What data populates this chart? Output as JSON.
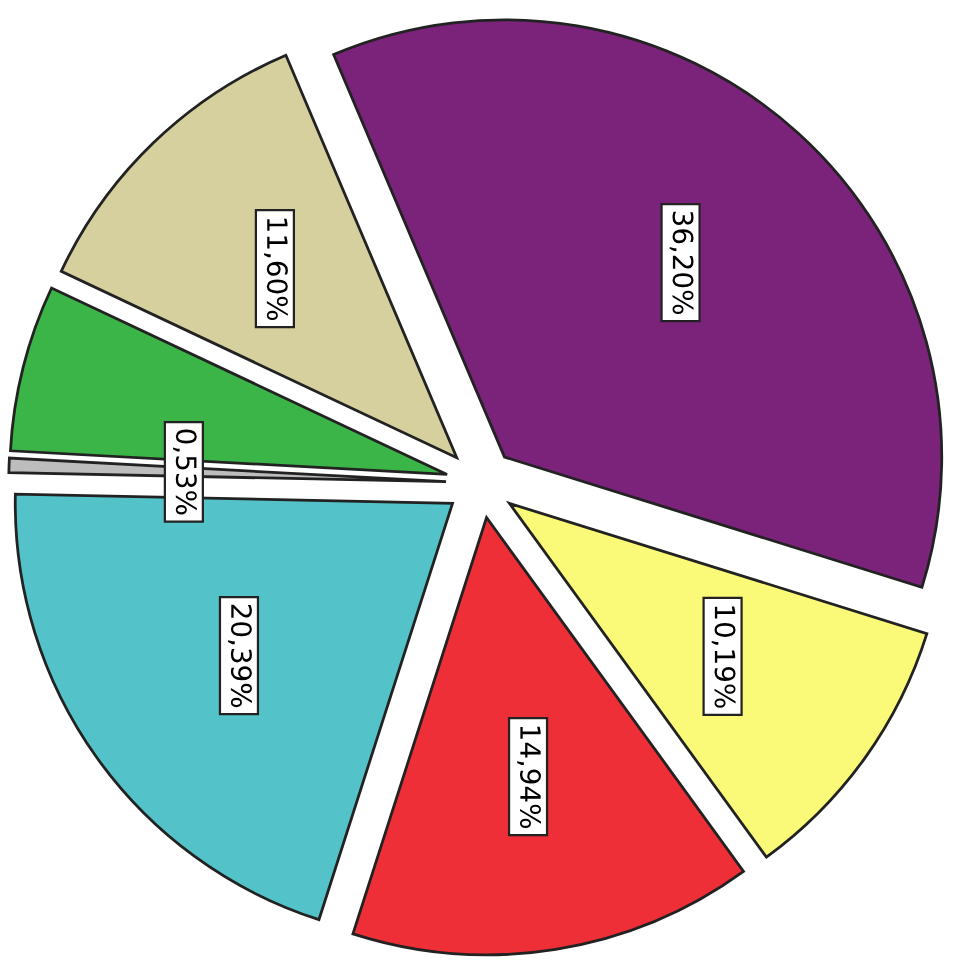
{
  "chart_data": {
    "type": "pie",
    "categories": [
      null,
      null,
      null,
      null,
      null,
      null,
      null
    ],
    "values": [
      36.2,
      10.19,
      14.94,
      20.39,
      0.53,
      6.15,
      11.6
    ],
    "value_labels": [
      "36,20%",
      "10,19%",
      "14,94%",
      "20,39%",
      "0,53%",
      null,
      "11,60%"
    ],
    "colors": [
      "#7b237b",
      "#fafa78",
      "#ee2f37",
      "#54c3c9",
      "#bdbdbd",
      "#3cb548",
      "#d6cf9e"
    ],
    "legend": false
  }
}
